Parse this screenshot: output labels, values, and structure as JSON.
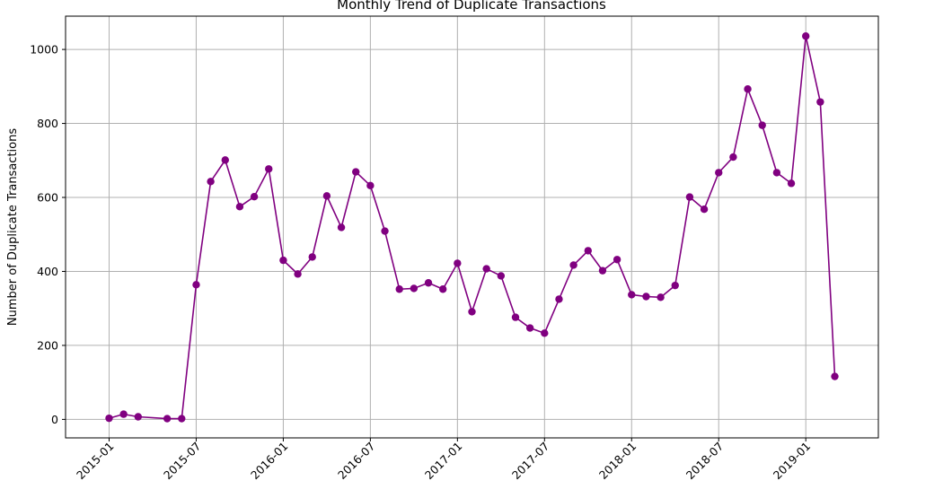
{
  "chart_data": {
    "type": "line",
    "title": "Monthly Trend of Duplicate Transactions",
    "xlabel": "",
    "ylabel": "Number of Duplicate Transactions",
    "color": "#800080",
    "grid": true,
    "marker": "circle",
    "xlim": [
      "2014-10-01",
      "2019-06-01"
    ],
    "ylim": [
      -50,
      1090
    ],
    "x_ticks": [
      "2015-01",
      "2015-07",
      "2016-01",
      "2016-07",
      "2017-01",
      "2017-07",
      "2018-01",
      "2018-07",
      "2019-01"
    ],
    "y_ticks": [
      0,
      200,
      400,
      600,
      800,
      1000
    ],
    "x": [
      "2015-01",
      "2015-02",
      "2015-03",
      "2015-05",
      "2015-06",
      "2015-07",
      "2015-08",
      "2015-09",
      "2015-10",
      "2015-11",
      "2015-12",
      "2016-01",
      "2016-02",
      "2016-03",
      "2016-04",
      "2016-05",
      "2016-06",
      "2016-07",
      "2016-08",
      "2016-09",
      "2016-10",
      "2016-11",
      "2016-12",
      "2017-01",
      "2017-02",
      "2017-03",
      "2017-04",
      "2017-05",
      "2017-06",
      "2017-07",
      "2017-08",
      "2017-09",
      "2017-10",
      "2017-11",
      "2017-12",
      "2018-01",
      "2018-02",
      "2018-03",
      "2018-04",
      "2018-05",
      "2018-06",
      "2018-07",
      "2018-08",
      "2018-09",
      "2018-10",
      "2018-11",
      "2018-12",
      "2019-01",
      "2019-02",
      "2019-03"
    ],
    "y": [
      3,
      14,
      7,
      2,
      2,
      364,
      643,
      701,
      575,
      602,
      677,
      430,
      393,
      439,
      604,
      519,
      669,
      632,
      509,
      352,
      354,
      369,
      352,
      422,
      291,
      407,
      388,
      276,
      247,
      233,
      325,
      417,
      456,
      402,
      432,
      337,
      332,
      330,
      362,
      601,
      568,
      667,
      709,
      893,
      795,
      667,
      638,
      1036,
      858,
      116
    ]
  }
}
